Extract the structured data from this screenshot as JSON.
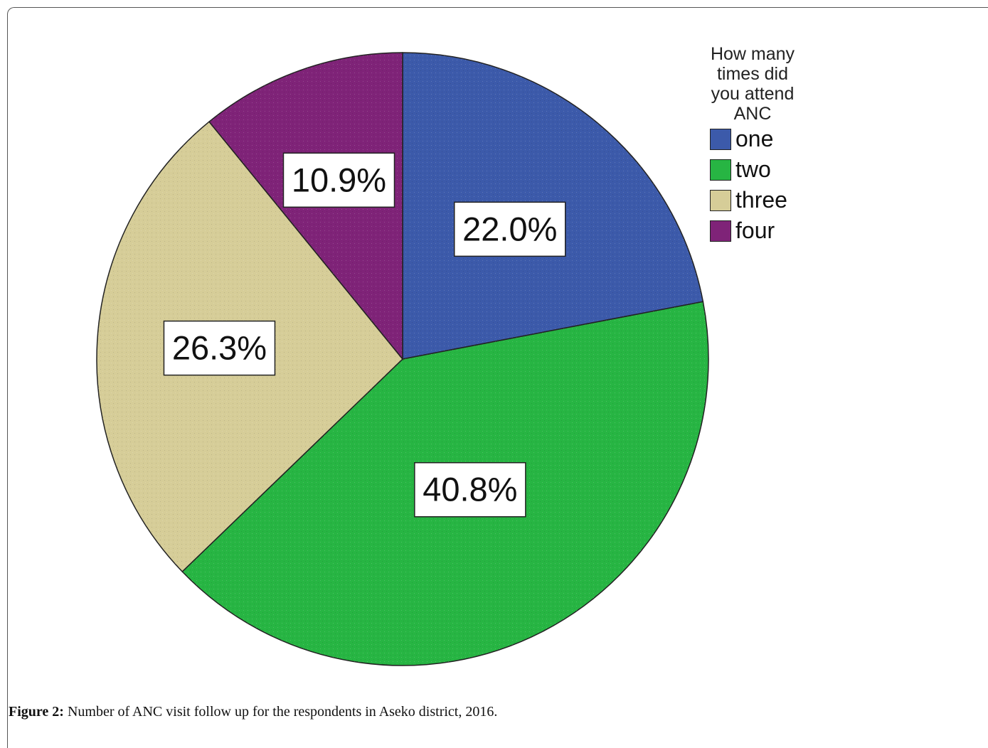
{
  "chart_data": {
    "type": "pie",
    "legend_title": "How many times did you attend ANC",
    "legend_position": "top-right",
    "slices": [
      {
        "label": "one",
        "value": 22.0,
        "display": "22.0%",
        "color": "#3c5aaa"
      },
      {
        "label": "two",
        "value": 40.8,
        "display": "40.8%",
        "color": "#27b543"
      },
      {
        "label": "three",
        "value": 26.3,
        "display": "26.3%",
        "color": "#d6cd98"
      },
      {
        "label": "four",
        "value": 10.9,
        "display": "10.9%",
        "color": "#7f2378"
      }
    ]
  },
  "caption": {
    "label": "Figure 2:",
    "text": " Number of ANC visit follow up for the respondents in Aseko district, 2016."
  }
}
